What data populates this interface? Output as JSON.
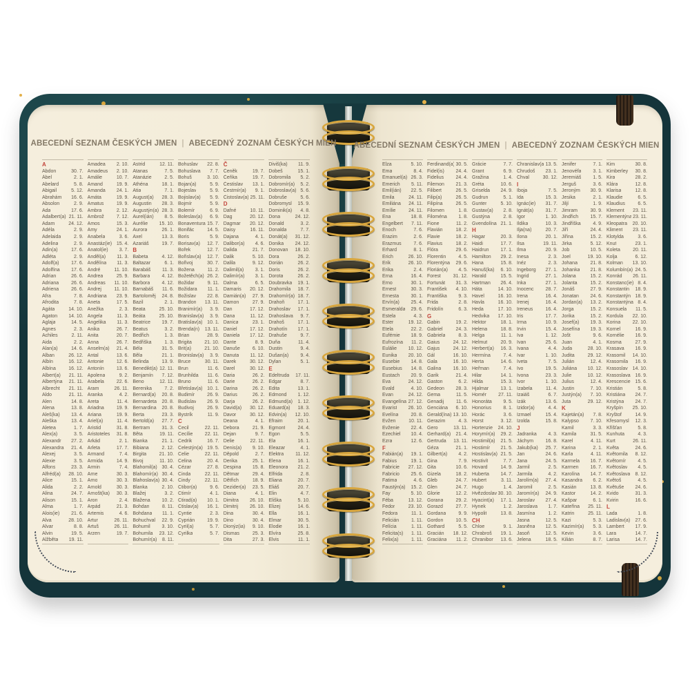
{
  "header": {
    "czech": "ABECEDNÍ SEZNAM ČESKÝCH JMEN",
    "divider": "|",
    "slovak": "ABECEDNÝ ZOZNAM ČESKÝCH MIEN"
  },
  "colors": {
    "cover": "#1b4347",
    "page": "#f4edda",
    "ink": "#5d5447",
    "section_letter": "#c2453c",
    "spiral_wire": "#d8a63e",
    "header_ink": "#847967"
  },
  "pages": [
    {
      "columns": [
        [
          "#A",
          "Abdon|30. 7.",
          "Ábel|2. 1.",
          "Abelard|5. 8.",
          "Abigail|5. 12.",
          "Abrahám|16. 6.",
          "Absolon|2. 9.",
          "Ada|17. 6.",
          "Adalbert(a)|21. 11.",
          "Adam|24. 12.",
          "Adéla|2. 9.",
          "Adelaida|2. 9.",
          "Adelina|2. 9.",
          "Adin(a)|17. 6.",
          "Adléta|2. 9.",
          "Adolf(a)|17. 6.",
          "Adolfína|17. 6.",
          "Adrian|26. 6.",
          "Adriana|26. 6.",
          "Adriena|26. 6.",
          "Afra|7. 8.",
          "Afrodita|7. 8.",
          "Agáta|14. 10.",
          "Agaton|14. 10.",
          "Aglaja|14. 5.",
          "Agnes|2. 3.",
          "Achiles|2. 11.",
          "Aida|2. 2.",
          "Alan(a)|14. 6.",
          "Alban|26. 12.",
          "Albín|16. 12.",
          "Albína|16. 12.",
          "Albert(a)|21. 11.",
          "Albertýna|21. 11.",
          "Albrecht|21. 11.",
          "Aldo|21. 11.",
          "Alen|14. 8.",
          "Alena|13. 8.",
          "Aleš(ka)|13. 4.",
          "Aleška|13. 4.",
          "Aletea|1. 7.",
          "Alex(a)|3. 5.",
          "Alexandr|27. 2.",
          "Alexandra|21. 4.",
          "Alexej|3. 5.",
          "Alexie|3. 5.",
          "Alfons|23. 3.",
          "Alfréd(a)|28. 10.",
          "Alice|15. 1.",
          "Alida|2. 2.",
          "Alina|24. 7.",
          "Alison|15. 1.",
          "Alma|1. 7.",
          "Alois(ie)|21. 6.",
          "Alva|28. 10.",
          "Alvar|8. 8.",
          "Alvin|19. 5.",
          "Alžběta|19. 11."
        ],
        [
          "Amadea|2. 10.",
          "Amadeus|2. 10.",
          "Amálie|10. 7.",
          "Amand|19. 9.",
          "Amanda|24. 1.",
          "Amáta|19. 9.",
          "Amatus|19. 9.",
          "Ambra|2. 12.",
          "Ambrož|7. 12.",
          "Amos|15. 3.",
          "Amy|24. 1.",
          "Anabela|3. 6.",
          "Anastáz(ie)|15. 4.",
          "Anatol(ie)|3. 7.",
          "Anděl(a)|11. 3.",
          "Andělína|11. 3.",
          "André|11. 10.",
          "Andrea|25. 9.",
          "Andreas|11. 10.",
          "Andrej|11. 10.",
          "Andriana|23. 9.",
          "Aneta|17. 5.",
          "Anežka|2. 3.",
          "Angela|11. 3.",
          "Angelika|11. 3.",
          "Anika|26. 7.",
          "Anita|20. 7.",
          "Anna|26. 7.",
          "Anselm(a)|21. 4.",
          "Antal|13. 6.",
          "Antonie|12. 6.",
          "Antonín|13. 6.",
          "Apolena|9. 2.",
          "Arabela|22. 6.",
          "Aram|26. 11.",
          "Aranka|4. 2.",
          "Areta|11. 4.",
          "Ariadna|19. 9.",
          "Ariana|19. 9.",
          "Ariel(a)|11. 4.",
          "Aristid|31. 8.",
          "Aristoteles|31. 8.",
          "Arkád|2. 1.",
          "Arleta|17. 7.",
          "Armand|7. 4.",
          "Armida|14. 9.",
          "Armin|7. 4.",
          "Arne|30. 3.",
          "Arno|30. 3.",
          "Arnold|30. 3.",
          "Arnošt(ka)|30. 3.",
          "Aron|2. 4.",
          "Arpád|21. 3.",
          "Artemis|4. 6.",
          "Artur|26. 11.",
          "Artuš|26. 11.",
          "Arzen|19. 7."
        ],
        [
          "Astrid|12. 11.",
          "Atanas|7. 5.",
          "Atanázie|2. 5.",
          "Athéna|18. 1.",
          "Atia|7. 1.",
          "August(a)|28. 3.",
          "Augustin|28. 3.",
          "Augustýn(a)|28. 3.",
          "Aurel(ián)|8. 5.",
          "Aurélie|15. 10.",
          "Aurora|26. 1.",
          "Axel|13. 3.",
          "Azariáš|19. 7.",
          "#B",
          "Babeta|4. 12.",
          "Baltazar|6. 1.",
          "Barabáš|11. 3.",
          "Barbara|4. 12.",
          "Barbora|4. 12.",
          "Barnabáš|11. 6.",
          "Bartoloměj|24. 8.",
          "Bazil|2. 1.",
          "Beata|25. 10.",
          "Beáta|25. 10.",
          "Beatrice|19. 7.",
          "Beatus|3. 2.",
          "Bedřich|1. 3.",
          "Bedřiška|1. 3.",
          "Béla|31. 5.",
          "Běla|21. 1.",
          "Belinda|13. 9.",
          "Benedikt(a)|12. 11.",
          "Benjamín|7. 12.",
          "Beno|12. 11.",
          "Berenika|7. 2.",
          "Bernard(a)|20. 8.",
          "Bernardeta|20. 8.",
          "Bernardina|20. 8.",
          "Berta|23. 3.",
          "Bertold(a)|27. 7.",
          "Bertram|31. 3.",
          "Běta|19. 11.",
          "Bianka|21. 1.",
          "Bibiana|2. 12.",
          "Birgita|21. 10.",
          "Bivoj|11. 10.",
          "Blahomil(a)|30. 4.",
          "Blahomír(a)|30. 4.",
          "Blahoslav(a)|30. 4.",
          "Blanka|2. 10.",
          "Blažej|3. 2.",
          "Blažena|10. 2.",
          "Bohdan|8. 11.",
          "Bohdana|11. 1.",
          "Bohuchval|22. 9.",
          "Bohumil|3. 10.",
          "Bohumila|23. 12.",
          "Bohumír(a)|8. 11."
        ],
        [
          "Bohuslav|22. 8.",
          "Bohuslava|7. 7.",
          "Bohuš|3. 10.",
          "Bojan(a)|5. 9.",
          "Bojeslav|5. 9.",
          "Bojislav(a)|5. 9.",
          "Bojmír|5. 9.",
          "Bolemír|6. 9.",
          "Boleslav(a)|6. 9.",
          "Bonaventura|15. 7.",
          "Bonifác|14. 5.",
          "Boris|5. 9.",
          "Borisav(a)|12. 7.",
          "Bořek|12. 7.",
          "Bořislav(a)|12. 7.",
          "Bořivoj|30. 7.",
          "Božena|11. 2.",
          "Božetěch(a)|26. 2.",
          "Božidar|9. 11.",
          "Božidara|11. 1.",
          "Božislav|22. 8.",
          "Brandon|13. 11.",
          "Branimír(a)|3. 9.",
          "Branislav(a)|3. 9.",
          "Bratislav(a)|10. 1.",
          "Brenda(n)|13. 11.",
          "Brian|28. 9.",
          "Brigita|21. 10.",
          "Brit(a)|21. 10.",
          "Bronislav(a)|3. 9.",
          "Bruce|30. 11.",
          "Brun|11. 6.",
          "Brunhilda|11. 6.",
          "Bruno|11. 6.",
          "Břetislav(a)|10. 1.",
          "Budimír|26. 9.",
          "Budislav|26. 9.",
          "Budivoj|26. 9.",
          "Bystrík|11. 9.",
          "#C",
          "Cecil|22. 11.",
          "Cecílie|22. 11.",
          "Cedrik|16. 7.",
          "Celestýn(a)|19. 5.",
          "Celie|22. 11.",
          "Celina|20. 4.",
          "Cézar|27. 8.",
          "Cinda|22. 11.",
          "Cindy|22. 11.",
          "Ctibor(a)|9. 6.",
          "Ctimír|4. 1.",
          "Ctirad(a)|10. 1.",
          "Ctislav(a)|16. 1.",
          "Cyntie|2. 3.",
          "Cyprián|19. 9.",
          "Cyril(a)|5. 7.",
          "Cyrilka|5. 7."
        ],
        [
          "#Č",
          "Čeněk|19. 7.",
          "Čeňka|19. 7.",
          "Čestislav|13. 1.",
          "Čestmír(a)|9. 1.",
          "Čistoslav(a)|25. 11.",
          "#D",
          "Dafné|10. 11.",
          "Dag|20. 12.",
          "Dagmar|20. 12.",
          "Daisy|16. 11.",
          "Dajana|4. 1.",
          "Dalibor(a)|4. 6.",
          "Dalida|21. 7.",
          "Dalik|5. 10.",
          "Dalila|9. 12.",
          "Dalimil(a)|3. 1.",
          "Dalimír(a)|3. 1.",
          "Dalma|6. 5.",
          "Damaris|20. 12.",
          "Damián(a)|27. 9.",
          "Damon|27. 9.",
          "Dan|17. 12.",
          "Dana|11. 12.",
          "Danica|23. 1.",
          "Daniel|17. 12.",
          "Daniela|17. 12.",
          "Dante|8. 9.",
          "Danuše|6. 10.",
          "Danuta|11. 12.",
          "Darek|30. 12.",
          "Darel|30. 12.",
          "Daria|26. 2.",
          "Darie|26. 2.",
          "Darina|26. 2.",
          "Darius|26. 2.",
          "Darja|26. 2.",
          "David(a)|30. 12.",
          "Davor|30. 12.",
          "Deana|4. 1.",
          "Debora|21. 9.",
          "Dejan|9. 7.",
          "Delie|22. 11.",
          "Denis(a)|9. 10.",
          "Děpold|2. 7.",
          "Derika|25. 1.",
          "Despina|15. 8.",
          "Dětmar|29. 4.",
          "Dětřich|18. 9.",
          "Dezider(a)|23. 5.",
          "Diana|4. 1.",
          "Dimitra|26. 10.",
          "Dimitrij|26. 10.",
          "Dina|30. 4.",
          "Dino|30. 4.",
          "Dionýz(ia)|9. 10.",
          "Dismas|25. 3.",
          "Dita|27. 3."
        ],
        [
          "Diviš(ka)|11. 9.",
          "Dobeš|15. 1.",
          "Dobromila|5. 2.",
          "Dobromír(a)|5. 2.",
          "Dobroslav(a)|5. 6.",
          "Dobruše|5. 6.",
          "Dobromysl|15. 9.",
          "Dominik(a)|4. 8.",
          "Dona|24. 12.",
          "Donald|3. 2.",
          "Donalda|7. 7.",
          "Donát(a)|31. 12.",
          "Donika|24. 12.",
          "Donovan|18. 10.",
          "Dora|26. 2.",
          "Dorián|26. 2.",
          "Doris|26. 2.",
          "Dorota|26. 2.",
          "Doubravka|19. 1.",
          "Drahomila|18. 7.",
          "Drahomír(a)|18. 7.",
          "Drahoň|17. 1.",
          "Drahoslav|17. 1.",
          "Drahoslava|9. 7.",
          "Drahoš|17. 1.",
          "Drahotín|17. 1.",
          "Drahuše|9. 7.",
          "Duňa|11. 4.",
          "Dustin|9. 4.",
          "Dušan(a)|9. 4.",
          "Dylan|5. 1.",
          "#E",
          "Edeltruda|17. 11.",
          "Edgar|8. 7.",
          "Edita|13. 1.",
          "Edmond|1. 12.",
          "Edmund(a)|1. 12.",
          "Eduard(a)|18. 3.",
          "Edvin(a)|12. 10.",
          "Efraim|20. 1.",
          "Egmont|24. 4.",
          "Egon|5. 5.",
          "Ela|16. 1.",
          "Eleazar|4. 1.",
          "Elektra|11. 12.",
          "Elena|16. 1.",
          "Eleonora|21. 2.",
          "Elfrida|2. 8.",
          "Eliana|20. 7.",
          "Eliáš|20. 7.",
          "Elin|4. 7.",
          "Eliška|5. 10.",
          "Elizej|14. 6.",
          "Ella|16. 1.",
          "Elmar|30. 5.",
          "Elodie|16. 1.",
          "Elvíra|25. 8.",
          "Elvis|11. 1."
        ]
      ]
    },
    {
      "columns": [
        [
          "Elza|5. 10.",
          "Ema|8. 4.",
          "Emanuel(a)|26. 3.",
          "Emerich|5. 11.",
          "Emil(ián)|22. 5.",
          "Emila|24. 11.",
          "Emiliána|24. 11.",
          "Emílie|24. 11.",
          "Ena|18. 8.",
          "Engelbert|7. 11.",
          "Enoch|7. 6.",
          "Erazim|2. 6.",
          "Erazmus|7. 6.",
          "Erhard|8. 1.",
          "Erich|26. 10.",
          "Erik|26. 10.",
          "Erika|2. 4.",
          "Erna|16. 4.",
          "Erno|30. 1.",
          "Ernest|30. 3.",
          "Ernesta|30. 1.",
          "Ervín(a)|25. 4.",
          "Esmeralda|29. 6.",
          "Estela|4. 3.",
          "Ester|19. 12.",
          "Etela|22. 2.",
          "Eufémie|18. 9.",
          "Eufrozína|11. 2.",
          "Eulálie|10. 12.",
          "Eunika|20. 10.",
          "Eusebie|14. 8.",
          "Eusebius|14. 8.",
          "Eustach|20. 9.",
          "Eva|24. 12.",
          "Evald|4. 10.",
          "Evan|24. 12.",
          "Evangelína|27. 12.",
          "Evarist|26. 10.",
          "Evelína|20. 8.",
          "Evžen|10. 11.",
          "Evženie|22. 4.",
          "Ezechiel|10. 4.",
          "Ezra|12. 6.",
          "#F",
          "Fabián(a)|19. 1.",
          "Fabius|19. 1.",
          "Fabricie|27. 12.",
          "Fabricio|25. 6.",
          "Fatima|4. 6.",
          "Faustýn(a)|15. 2.",
          "Fay|5. 10.",
          "Féba|13. 12.",
          "Fedor|23. 10.",
          "Fedora|11. 1.",
          "Felicián|1. 11.",
          "Felícia|1. 11.",
          "Felicita(s)|1. 11.",
          "Felix(a)|1. 11."
        ],
        [
          "Ferdinand(a)|30. 5.",
          "Fidel(is)|24. 4.",
          "Fidelius|24. 4.",
          "Filemon|21. 3.",
          "Filibert|26. 5.",
          "Filip(a)|26. 5.",
          "Filipína|26. 5.",
          "Filomen|1. 8.",
          "Filoména|1. 8.",
          "Fione|11. 2.",
          "Flavián|18. 2.",
          "Flavie|18. 2.",
          "Flavius|18. 2.",
          "Flóra|29. 6.",
          "Florentin|4. 5.",
          "Florentýna|29. 6.",
          "Florián(a)|4. 5.",
          "Forest|31. 12.",
          "Fortunát|31. 3.",
          "František|4. 10.",
          "Františka|9. 3.",
          "Frida|2. 8.",
          "Fridolín|6. 3.",
          "#G",
          "Gabin|19. 2.",
          "Gabriel|24. 3.",
          "Gabriela|8. 3.",
          "Gaius|24. 12.",
          "Gajus|24. 12.",
          "Gál|16. 10.",
          "Gala|16. 10.",
          "Galina|16. 10.",
          "Garik|21. 4.",
          "Gaston|6. 2.",
          "Gedeon|28. 3.",
          "Gema|11. 5.",
          "Genadij|11. 6.",
          "Genciána|6. 10.",
          "Gerald(ína)|13. 10.",
          "Gerazim|4. 3.",
          "Gero|13. 11.",
          "Gerhard(a)|21. 4.",
          "Gertruda|13. 11.",
          "Géza|21. 1.",
          "Gilbert(a)|4. 2.",
          "Gina|7. 9.",
          "Gita|10. 6.",
          "Gizela|18. 2.",
          "Gleb|24. 7.",
          "Glen|24. 7.",
          "Glorie|12. 2.",
          "Gorana|29. 2.",
          "Gorazd|27. 7.",
          "Gordana|9. 9.",
          "Gordon|10. 5.",
          "Gothard|5. 5.",
          "Gracián|18. 12.",
          "Graciána|11. 2."
        ],
        [
          "Grácie|7. 7.",
          "Grant|6. 9.",
          "Gražina|1. 4.",
          "Gréta|10. 6.",
          "Griselda|24. 9.",
          "Gudrun|5. 1.",
          "Gunter|5. 10.",
          "Gustav(a)|2. 8.",
          "Gustýna|2. 8.",
          "Gvendolína|21. 1.",
          "#H",
          "Hagar|20. 3.",
          "Haidi|17. 7.",
          "Haidrun|17. 1.",
          "Hamilton|29. 2.",
          "Hana|15. 8.",
          "Hanuš(ka)|6. 10.",
          "Harald|15. 5.",
          "Hartman|26. 4.",
          "Háta|14. 10.",
          "Havel|16. 10.",
          "Havla|16. 10.",
          "Heda|17. 10.",
          "Hedvika|17. 10.",
          "Hektor|18. 1.",
          "Helena|18. 8.",
          "Helga|11. 1.",
          "Helmut|20. 9.",
          "Herbert(a)|16. 3.",
          "Hermína|7. 4.",
          "Herta|14. 6.",
          "Heřman|7. 4.",
          "Hilar|14. 1.",
          "Hilda|15. 3.",
          "Hjalmar|13. 1.",
          "Homér|27. 11.",
          "Honoráta|9. 5.",
          "Honorius|8. 1.",
          "Horác|3. 6.",
          "Horst|3. 12.",
          "Hortenzie|24. 10.",
          "Horymír(a)|29. 2.",
          "Hostimil(a)|21. 5.",
          "Hostimír|21. 5.",
          "Hostislav(a)|21. 5.",
          "Hostivít|7. 7.",
          "Hovard|14. 9.",
          "Huberta|14. 7.",
          "Hubert|3. 11.",
          "Hugo|1. 4.",
          "Hvězdoslav(a)|30. 10.",
          "Hyacint(a)|17. 1.",
          "Hynek|1. 2.",
          "Hypolit|13. 8.",
          "#CH",
          "Chloe|9. 1.",
          "Chrabroš|19. 1.",
          "Chranibor|13. 6."
        ],
        [
          "Chranislav(a)|13. 5.",
          "Chrudoš|23. 1.",
          "Chval|30. 12.",
          "#I",
          "Iboja|7. 5.",
          "Ida|15. 3.",
          "Ignác(ie)|31. 7.",
          "Ignát(a)|31. 7.",
          "Igor|1. 10.",
          "Ildika|10. 3.",
          "Ilja(na)|20. 7.",
          "Ilona|20. 1.",
          "Ilsa|19. 11.",
          "Ilma|20. 9.",
          "Inesa|2. 3.",
          "Inéz|2. 3.",
          "Ingeborg|27. 1.",
          "Ingrid|27. 1.",
          "Inka|27. 1.",
          "Inocenc|28. 7.",
          "Irena|16. 4.",
          "Irenej|16. 4.",
          "Ireneus|16. 4.",
          "Iris|17. 7.",
          "Irma|10. 9.",
          "Irvin|15. 4.",
          "Iva|1. 12.",
          "Ivan|25. 6.",
          "Ivana|4. 4.",
          "Ivar|1. 10.",
          "Iveta|7. 5.",
          "Ivo|19. 5.",
          "Ivona|23. 3.",
          "Ivor|1. 10.",
          "Izabela|11. 4.",
          "Izaiáš|6. 7.",
          "Izák|13. 6.",
          "Izidor(a)|4. 4.",
          "Izmael|15. 4.",
          "Izolda|15. 8.",
          "#J",
          "Jadranka|4. 3.",
          "Jáchym|16. 8.",
          "Jakub(ka)|25. 7.",
          "Jan|24. 6.",
          "Jana|24. 5.",
          "Jarmil|2. 5.",
          "Jarmila|4. 2.",
          "Jarolím(a)|27. 4.",
          "Jaromil|2. 5.",
          "Jaromír(a)|24. 9.",
          "Jaroslav|27. 4.",
          "Jaroslava|1. 7.",
          "Jasmína|1. 2.",
          "Jasna|12. 5.",
          "Jasněna|12. 5.",
          "Jasoň|12. 5.",
          "Jelena|18. 5."
        ],
        [
          "Jenifer|7. 1.",
          "Jenovéfa|3. 1.",
          "Jeremiáš|1. 5.",
          "Jerguš|3. 6.",
          "Jeroným|30. 9.",
          "Jesika|2. 1.",
          "Jiljí|1. 9.",
          "Jimram|30. 9.",
          "Jindřich|15. 7.",
          "Jindřiška|4. 9.",
          "Jiří|24. 4.",
          "Jiřina|15. 2.",
          "Jirka|5. 12.",
          "Job|10. 5.",
          "Joel|19. 10.",
          "Johana|21. 8.",
          "Johanka|21. 8.",
          "Jolana|15. 2.",
          "Jolanta|15. 2.",
          "Jonáš|27. 9.",
          "Jonatan|24. 6.",
          "Jordan(a)|13. 2.",
          "Jorga|15. 2.",
          "Jorika|15. 2.",
          "Josef(a)|19. 3.",
          "Josefína|19. 3.",
          "Jošt|9. 6.",
          "Juan|4. 1.",
          "Juda|28. 10.",
          "Judita|29. 12.",
          "Julián|12. 4.",
          "Juliána|10. 12.",
          "Julie|10. 12.",
          "Julius|12. 4.",
          "Justin|7. 10.",
          "Justýn(a)|7. 10.",
          "Juta|29. 12.",
          "#K",
          "Kajetán(a)|7. 8.",
          "Kalypso|7. 10.",
          "Kamil|3. 3.",
          "Kamila|31. 5.",
          "Karel|4. 11.",
          "Karina|2. 1.",
          "Karla|4. 11.",
          "Karmela|16. 7.",
          "Karmen|16. 7.",
          "Karolína|14. 7.",
          "Kasandra|6. 2.",
          "Kasián|13. 8.",
          "Kastor|14. 2.",
          "Kašpar|6. 1.",
          "Kateřina|25. 11.",
          "Katrin|25. 11.",
          "Kazi|5. 3.",
          "Kazimír(a)|5. 3.",
          "Kevin|3. 6.",
          "Kilián|8. 7."
        ],
        [
          "Kim|30. 8.",
          "Kimberley|30. 8.",
          "Kira|28. 2.",
          "Klára|12. 8.",
          "Klarisa|12. 8.",
          "Klaudie|6. 5.",
          "Klaudius|6. 5.",
          "Klement|23. 11.",
          "Klementýna|23. 11.",
          "Kleopatra|20. 10.",
          "Kliment|23. 11.",
          "Klotylda|3. 6.",
          "Knut|23. 1.",
          "Koleta|20. 11.",
          "Kolja|6. 12.",
          "Kolman|13. 10.",
          "Kolumbín(a)|24. 5.",
          "Konrád|26. 11.",
          "Konstanc(ie)|8. 4.",
          "Konstantin|18. 9.",
          "Konstantýn|18. 9.",
          "Konstantýna|8. 4.",
          "Konsuela|11. 5.",
          "Kordula|22. 10.",
          "Korina|22. 10.",
          "Kornel|16. 9.",
          "Kornélie|16. 9.",
          "Kosma|27. 9.",
          "Krasava|16. 9.",
          "Krasomil|14. 10.",
          "Krasomila|16. 9.",
          "Krasoslav|14. 10.",
          "Krasoslava|16. 9.",
          "Krescencie|15. 6.",
          "Kristián|5. 8.",
          "Kristiána|24. 7.",
          "Kristýna|24. 7.",
          "Kryšpín|25. 10.",
          "Kryštof|14. 9.",
          "Křesomysl|12. 3.",
          "Křišťan|5. 8.",
          "Kunhuta|4. 3.",
          "Kurt|26. 11.",
          "Květa|24. 6.",
          "Květomila|8. 12.",
          "Květomír|4. 5.",
          "Květoslav|4. 5.",
          "Květoslava|8. 12.",
          "Květoš|4. 5.",
          "Květuše|24. 6.",
          "Kvido|31. 3.",
          "Kvirin|16. 6.",
          "#L",
          "Lada|1. 8.",
          "Ladislav(a)|27. 6.",
          "Lambert|17. 9.",
          "Lara|14. 7.",
          "Larisa|14. 7."
        ]
      ]
    }
  ]
}
